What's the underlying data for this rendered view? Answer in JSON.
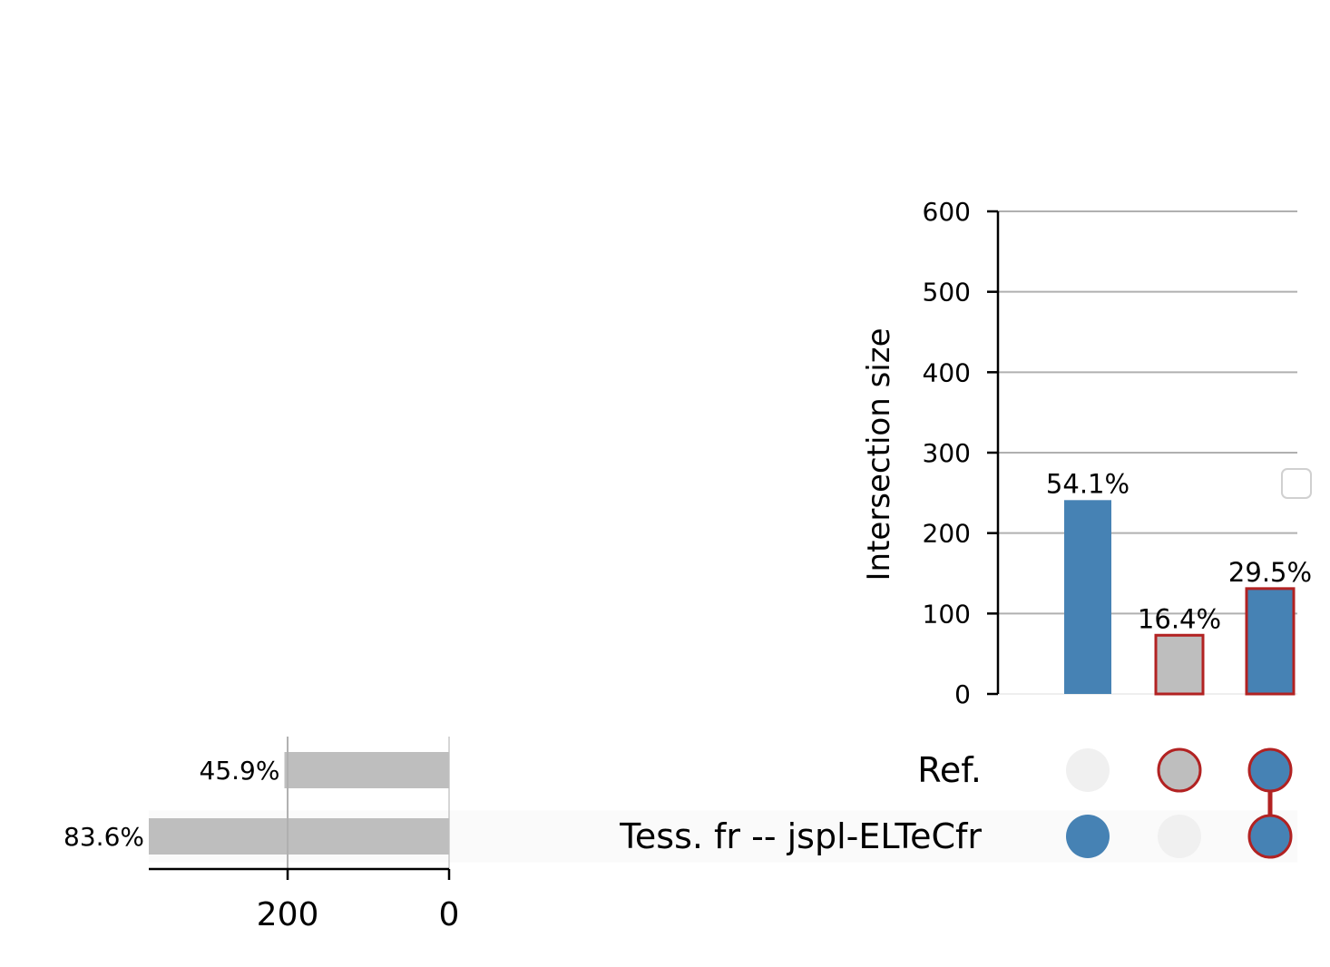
{
  "chart_data": {
    "type": "upset",
    "sets": [
      {
        "name": "Ref.",
        "size": 204,
        "percent_label": "45.9%",
        "highlighted": false
      },
      {
        "name": "Tess. fr -- jspl-ELTeCfr",
        "size": 372,
        "percent_label": "83.6%",
        "highlighted": false
      }
    ],
    "intersections": [
      {
        "members": [
          false,
          true
        ],
        "size": 241,
        "percent_label": "54.1%",
        "highlighted": false
      },
      {
        "members": [
          true,
          false
        ],
        "size": 73,
        "percent_label": "16.4%",
        "highlighted": true
      },
      {
        "members": [
          true,
          true
        ],
        "size": 131,
        "percent_label": "29.5%",
        "highlighted": true
      }
    ],
    "intersection_axis": {
      "ylabel": "Intersection size",
      "ylim": [
        0,
        600
      ],
      "ticks": [
        0,
        100,
        200,
        300,
        400,
        500,
        600
      ],
      "grid": true
    },
    "set_size_axis": {
      "ticks": [
        200,
        0
      ],
      "xlim": [
        0,
        372
      ]
    },
    "colors": {
      "filled": "#4682b4",
      "shaded": "#bebebe",
      "highlight_edge": "#b22222",
      "inactive_dot": "#f0f0f0",
      "grid": "#b0b0b0",
      "row_shade": "#fafafa"
    },
    "legend": {
      "placement": "right",
      "entries": []
    }
  }
}
